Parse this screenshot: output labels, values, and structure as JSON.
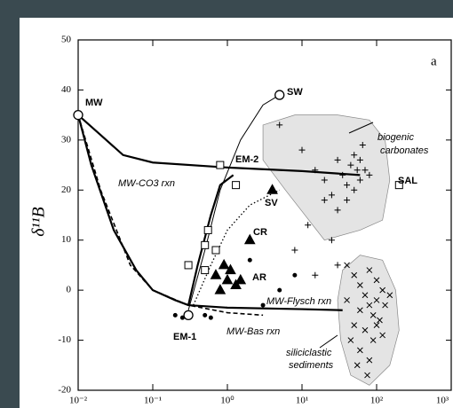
{
  "chart_data": {
    "type": "scatter",
    "panel_label": "a",
    "y_label": "δ¹¹B",
    "xscale": "log",
    "xlim": [
      0.01,
      1000
    ],
    "ylim": [
      -20,
      50
    ],
    "xticks": [
      {
        "value": 0.01,
        "label": "10⁻²"
      },
      {
        "value": 0.1,
        "label": "10⁻¹"
      },
      {
        "value": 1,
        "label": "10⁰"
      },
      {
        "value": 10,
        "label": "10¹"
      },
      {
        "value": 100,
        "label": "10²"
      },
      {
        "value": 1000,
        "label": "10³"
      }
    ],
    "yticks": [
      -20,
      -10,
      0,
      10,
      20,
      30,
      40,
      50
    ],
    "regions": [
      {
        "label": [
          "biogenic",
          "carbonates"
        ],
        "color": "#e4e4e4",
        "x": [
          3,
          8,
          30,
          80,
          130,
          150,
          120,
          60,
          20,
          6,
          3
        ],
        "y": [
          33,
          35,
          35,
          34,
          30,
          22,
          14,
          12,
          10,
          20,
          26
        ]
      },
      {
        "label": [
          "siliciclastic",
          "sediments"
        ],
        "color": "#e4e4e4",
        "x": [
          35,
          60,
          120,
          180,
          200,
          150,
          80,
          45,
          33,
          30
        ],
        "y": [
          4,
          7,
          6,
          0,
          -8,
          -15,
          -19,
          -17,
          -10,
          -2
        ]
      }
    ],
    "series": [
      {
        "color": "#000",
        "style": "thick",
        "x": [
          0.01,
          0.02,
          0.04,
          0.1,
          1,
          10,
          60
        ],
        "values": [
          35,
          31,
          27,
          25.5,
          24.5,
          23.8,
          23
        ]
      },
      {
        "color": "#000",
        "style": "thick",
        "x": [
          0.01,
          0.015,
          0.03,
          0.06,
          0.1,
          0.2,
          0.3,
          1,
          10,
          35
        ],
        "values": [
          35,
          25,
          12,
          4,
          0,
          -2,
          -3,
          -3.5,
          -3.8,
          -4
        ]
      },
      {
        "color": "#000",
        "style": "thick",
        "x": [
          0.3,
          0.4,
          0.6,
          0.8,
          1.2
        ],
        "values": [
          -3,
          5,
          15,
          21,
          23
        ]
      },
      {
        "color": "#000",
        "style": "dashed",
        "x": [
          0.01,
          0.02,
          0.05,
          0.1,
          0.3,
          1,
          3
        ],
        "values": [
          35,
          20,
          5,
          0,
          -3,
          -4.5,
          -5
        ]
      },
      {
        "color": "#000",
        "style": "thin",
        "x": [
          0.3,
          0.5,
          0.8,
          1.5,
          3,
          5
        ],
        "values": [
          -4,
          8,
          20,
          30,
          37,
          39
        ]
      },
      {
        "color": "#000",
        "style": "dotted",
        "x": [
          0.35,
          0.6,
          1,
          2,
          5
        ],
        "values": [
          -3,
          5,
          12,
          17,
          20
        ]
      },
      {
        "color": "#000",
        "marker": "circle",
        "x": [
          0.01,
          5,
          0.3
        ],
        "values": [
          35,
          39,
          -5
        ]
      },
      {
        "color": "#000",
        "marker": "square",
        "x": [
          0.3,
          0.5,
          0.55,
          0.7,
          0.5,
          0.8,
          1.3,
          200
        ],
        "values": [
          5,
          9,
          12,
          8,
          4,
          25,
          21,
          21
        ]
      },
      {
        "color": "#000",
        "marker": "triangle",
        "x": [
          2,
          0.7,
          0.9,
          1,
          1.1,
          1.3,
          1.5,
          0.8,
          4
        ],
        "values": [
          10,
          3,
          5,
          2,
          4,
          1,
          2,
          0,
          20
        ]
      },
      {
        "color": "#000",
        "marker": "plus",
        "x": [
          5,
          10,
          15,
          20,
          25,
          30,
          35,
          40,
          45,
          50,
          55,
          60,
          50,
          40,
          30,
          20,
          60,
          70,
          65,
          80,
          12,
          8,
          25,
          30,
          15
        ],
        "values": [
          33,
          28,
          24,
          22,
          19,
          26,
          23,
          21,
          25,
          27,
          24,
          22,
          20,
          18,
          16,
          18,
          26,
          24,
          29,
          23,
          13,
          8,
          10,
          5,
          3
        ]
      },
      {
        "color": "#000",
        "marker": "cross",
        "x": [
          40,
          50,
          60,
          70,
          80,
          90,
          100,
          120,
          100,
          80,
          60,
          50,
          70,
          90,
          110,
          130,
          150,
          45,
          60,
          80,
          100,
          120,
          40,
          55,
          75
        ],
        "values": [
          5,
          3,
          1,
          -1,
          -3,
          -5,
          -2,
          0,
          2,
          4,
          -4,
          -7,
          -8,
          -10,
          -6,
          -3,
          -1,
          -10,
          -12,
          -14,
          -7,
          -9,
          -2,
          -15,
          -17
        ]
      },
      {
        "color": "#000",
        "marker": "dot",
        "x": [
          0.2,
          0.25,
          0.5,
          0.6,
          3,
          5,
          8,
          2
        ],
        "values": [
          -5,
          -5.5,
          -5,
          -5.5,
          -3,
          0,
          3,
          6
        ]
      }
    ],
    "annotations": [
      "MW",
      "SW",
      "EM-2",
      "SV",
      "CR",
      "AR",
      "EM-1",
      "SAL",
      "MW-CO3 rxn",
      "MW-Flysch rxn",
      "MW-Bas rxn"
    ]
  }
}
